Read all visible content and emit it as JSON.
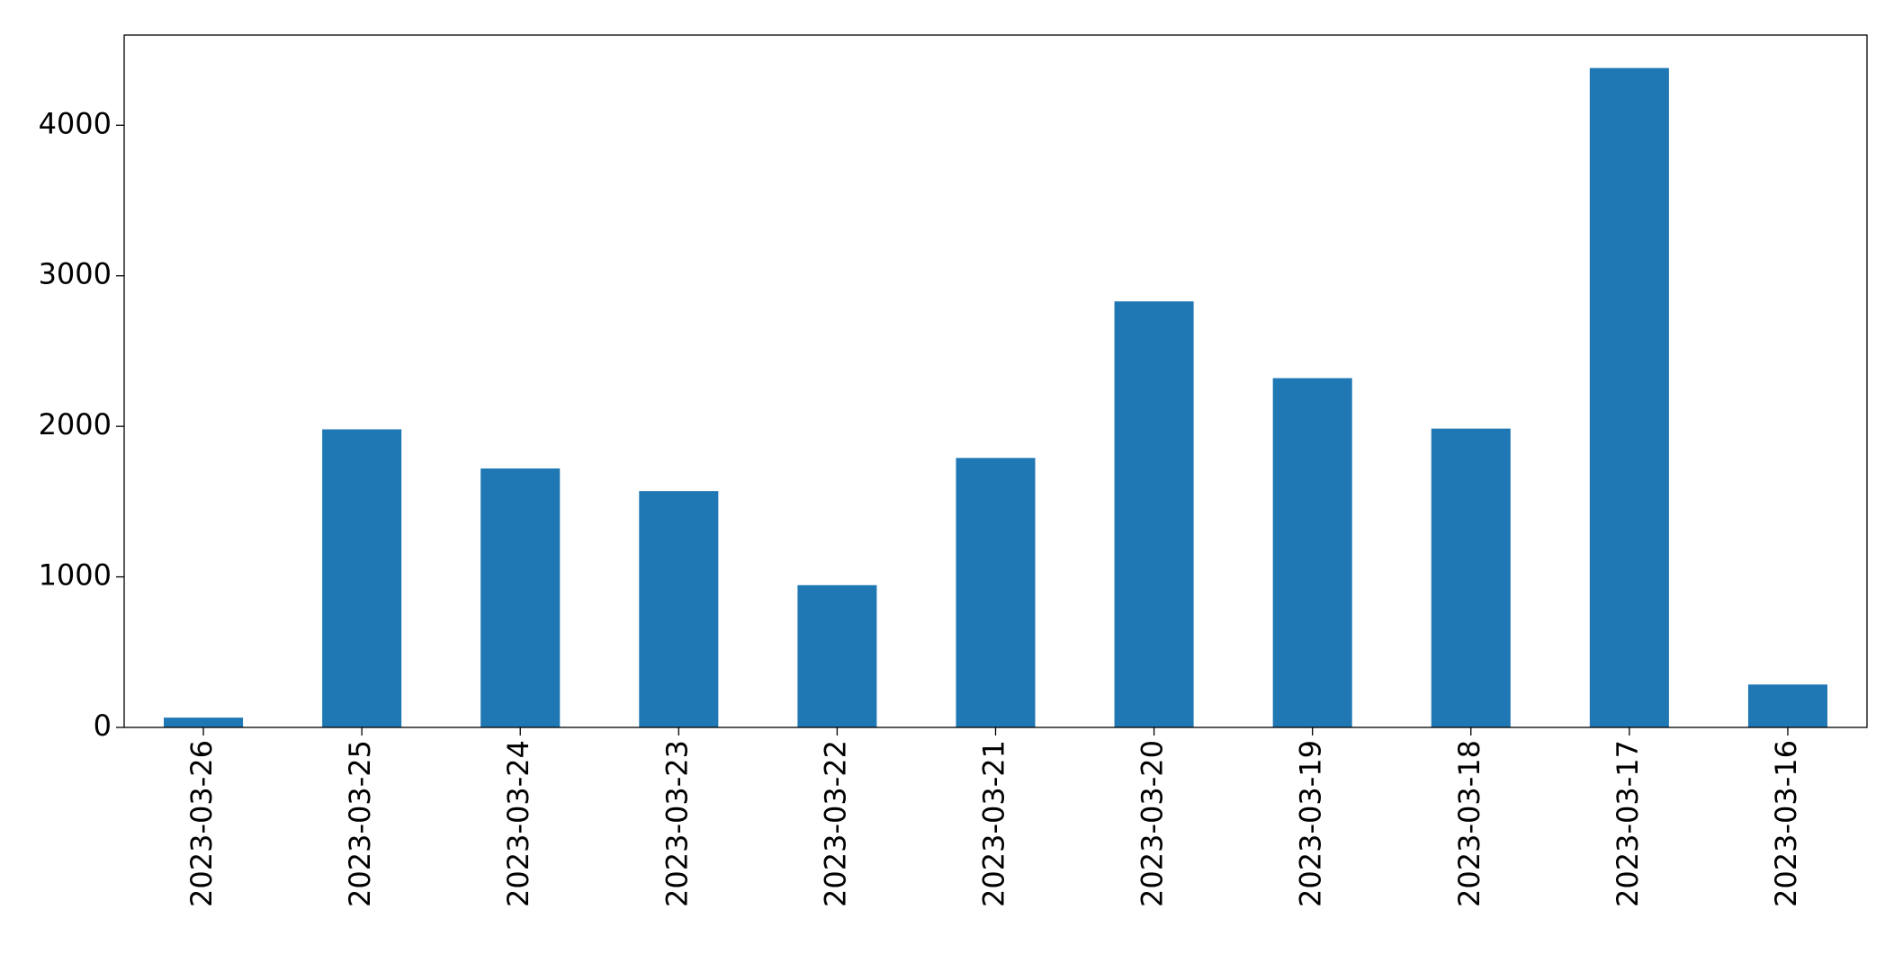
{
  "chart_data": {
    "type": "bar",
    "categories": [
      "2023-03-26",
      "2023-03-25",
      "2023-03-24",
      "2023-03-23",
      "2023-03-22",
      "2023-03-21",
      "2023-03-20",
      "2023-03-19",
      "2023-03-18",
      "2023-03-17",
      "2023-03-16"
    ],
    "values": [
      65,
      1980,
      1720,
      1570,
      945,
      1790,
      2830,
      2320,
      1985,
      4380,
      285
    ],
    "color": "#1f77b4",
    "ylim": [
      0,
      4599
    ],
    "yticks": [
      0,
      1000,
      2000,
      3000,
      4000
    ],
    "grid": false
  }
}
